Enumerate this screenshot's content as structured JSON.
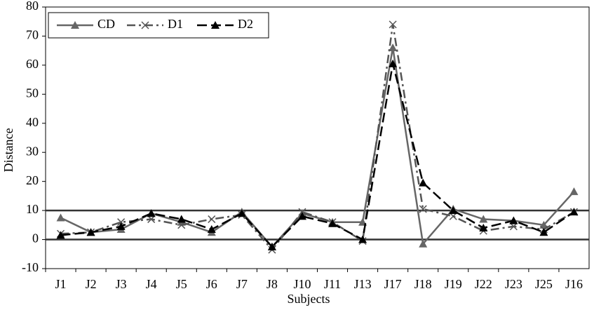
{
  "chart_data": {
    "type": "line",
    "x_label": "Subjects",
    "y_label": "Distance",
    "categories": [
      "J1",
      "J2",
      "J3",
      "J4",
      "J5",
      "J6",
      "J7",
      "J8",
      "J10",
      "J11",
      "J13",
      "J17",
      "J18",
      "J19",
      "J22",
      "J23",
      "J25",
      "J16"
    ],
    "series": [
      {
        "name": "CD",
        "color": "#666666",
        "line_style": "solid",
        "marker": "triangle",
        "values": [
          7.5,
          2.5,
          3.5,
          9,
          6,
          2.5,
          9.5,
          -2.5,
          9,
          6,
          6,
          66,
          -1.5,
          10.5,
          7,
          6.5,
          5,
          16.5
        ]
      },
      {
        "name": "D1",
        "color": "#555555",
        "line_style": "dashdot",
        "marker": "x",
        "values": [
          2,
          2.5,
          6,
          7,
          5,
          7,
          8.5,
          -3.5,
          9.5,
          6,
          -0.5,
          74,
          10.5,
          8,
          3,
          4.5,
          3.5,
          9.5
        ]
      },
      {
        "name": "D2",
        "color": "#000000",
        "line_style": "dashed",
        "marker": "triangle",
        "values": [
          1.5,
          2.5,
          4.5,
          9,
          7,
          3.5,
          9,
          -2.5,
          8,
          5.5,
          0,
          60.5,
          19.5,
          10,
          4,
          6.5,
          2.5,
          9.5
        ]
      }
    ],
    "ylim": [
      -10,
      80
    ],
    "yticks": [
      -10,
      0,
      10,
      20,
      30,
      40,
      50,
      60,
      70,
      80
    ],
    "reference_lines": [
      0,
      10
    ],
    "grid": false,
    "legend": "upper left"
  }
}
